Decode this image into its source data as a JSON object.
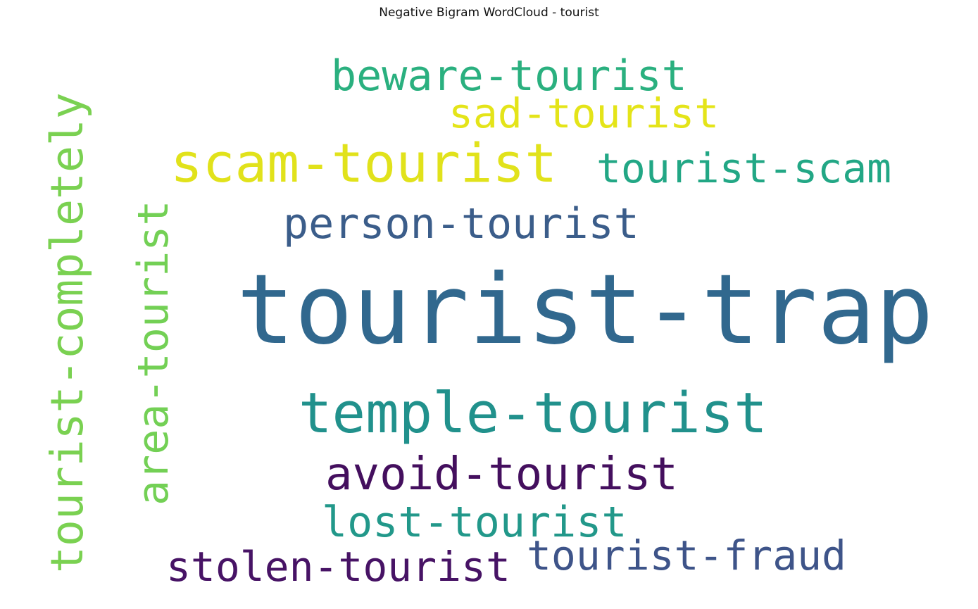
{
  "title": "Negative Bigram WordCloud - tourist",
  "words": {
    "beware_tourist": {
      "text": "beware-tourist",
      "color": "#2ab07f"
    },
    "sad_tourist": {
      "text": "sad-tourist",
      "color": "#e4e419"
    },
    "scam_tourist": {
      "text": "scam-tourist",
      "color": "#e1e21b"
    },
    "tourist_scam": {
      "text": "tourist-scam",
      "color": "#22a785"
    },
    "person_tourist": {
      "text": "person-tourist",
      "color": "#3b5d8a"
    },
    "tourist_trap": {
      "text": "tourist-trap",
      "color": "#31688e"
    },
    "temple_tourist": {
      "text": "temple-tourist",
      "color": "#21918c"
    },
    "avoid_tourist": {
      "text": "avoid-tourist",
      "color": "#440f5e"
    },
    "lost_tourist": {
      "text": "lost-tourist",
      "color": "#22988a"
    },
    "stolen_tourist": {
      "text": "stolen-tourist",
      "color": "#471365"
    },
    "tourist_fraud": {
      "text": "tourist-fraud",
      "color": "#3e5489"
    },
    "tourist_completely": {
      "text": "tourist-completely",
      "color": "#7ad151"
    },
    "area_tourist": {
      "text": "area-tourist",
      "color": "#73d055"
    }
  }
}
